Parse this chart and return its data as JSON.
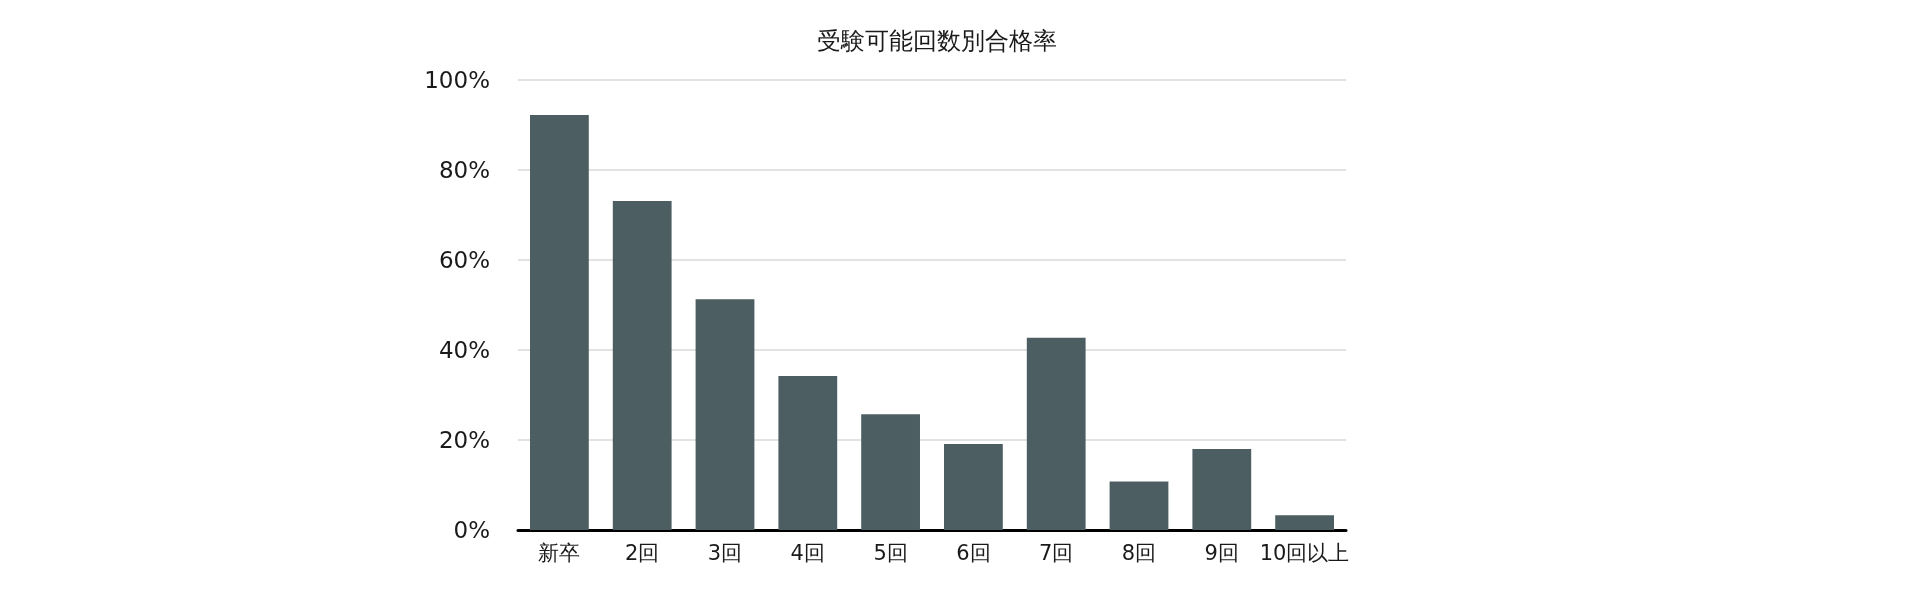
{
  "chart_data": {
    "type": "bar",
    "title": "受験可能回数別合格率",
    "categories": [
      "新卒",
      "2回",
      "3回",
      "4回",
      "5回",
      "6回",
      "7回",
      "8回",
      "9回",
      "10回以上"
    ],
    "values": [
      92.2,
      73.1,
      51.3,
      34.2,
      25.7,
      19.1,
      42.7,
      10.8,
      18.0,
      3.3
    ],
    "color": "#4d5e62",
    "ylim": [
      0,
      100
    ],
    "yticks": [
      {
        "value": 0,
        "label": "0%"
      },
      {
        "value": 20,
        "label": "20%"
      },
      {
        "value": 40,
        "label": "40%"
      },
      {
        "value": 60,
        "label": "60%"
      },
      {
        "value": 80,
        "label": "80%"
      },
      {
        "value": 100,
        "label": "100%"
      }
    ],
    "grid": "y"
  }
}
